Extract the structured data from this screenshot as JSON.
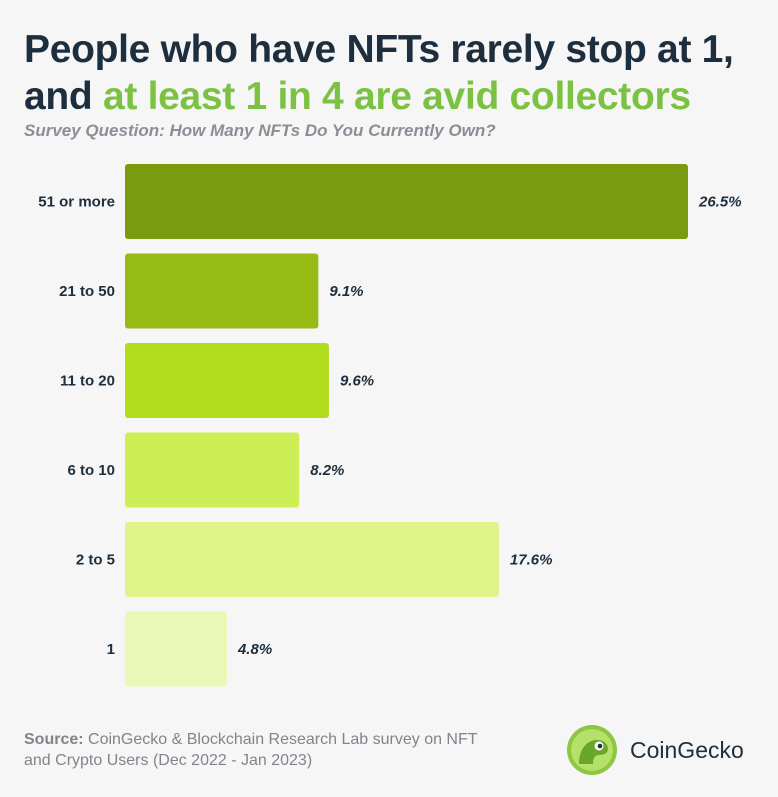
{
  "header": {
    "title_part1": "People who have NFTs rarely stop at 1, and ",
    "title_highlight": "at least 1 in 4 are avid collectors",
    "subtitle": "Survey Question: How Many NFTs Do You Currently Own?"
  },
  "chart_data": {
    "type": "bar",
    "orientation": "horizontal",
    "title": "People who have NFTs rarely stop at 1, and at least 1 in 4 are avid collectors",
    "subtitle": "Survey Question: How Many NFTs Do You Currently Own?",
    "categories": [
      "51 or more",
      "21 to 50",
      "11 to 20",
      "6 to 10",
      "2 to 5",
      "1"
    ],
    "values": [
      26.5,
      9.1,
      9.6,
      8.2,
      17.6,
      4.8
    ],
    "value_labels": [
      "26.5%",
      "9.1%",
      "9.6%",
      "8.2%",
      "17.6%",
      "4.8%"
    ],
    "colors": [
      "#7a9a10",
      "#95bb14",
      "#b2dd1c",
      "#cdee54",
      "#def488",
      "#eaf8b7"
    ],
    "xlim": [
      0,
      26.5
    ],
    "xlabel": "",
    "ylabel": "",
    "grid": false,
    "legend": "none"
  },
  "footer": {
    "source_label": "Source:",
    "source_text": " CoinGecko & Blockchain Research Lab survey on NFT and Crypto Users (Dec 2022 - Jan 2023)"
  },
  "brand": {
    "name": "CoinGecko",
    "logo_icon": "gecko-logo-icon"
  }
}
